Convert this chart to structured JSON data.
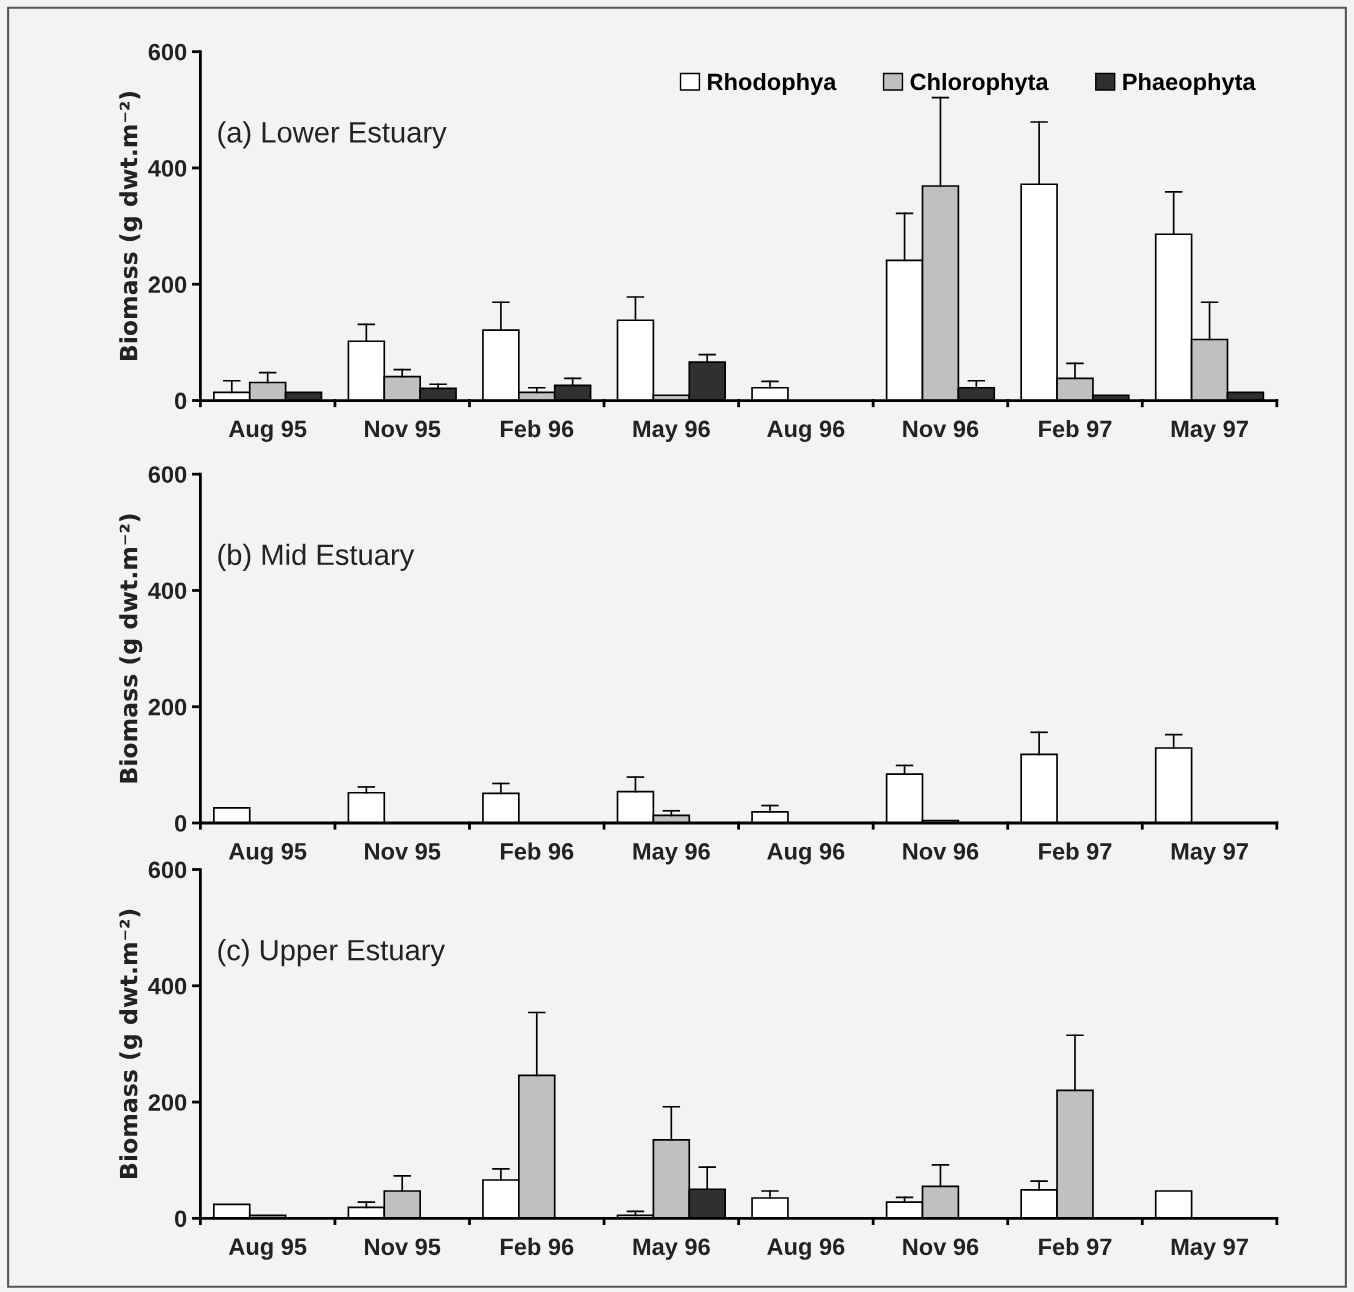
{
  "chart_data": [
    {
      "type": "bar",
      "ylabel": "Biomass (g dwt.m⁻²)",
      "annotations": [
        "(a) Lower Estuary"
      ],
      "categories": [
        "Aug 95",
        "Nov 95",
        "Feb 96",
        "May 96",
        "Aug 96",
        "Nov 96",
        "Feb 97",
        "May 97"
      ],
      "ylim": [
        0,
        600
      ],
      "yticks": [
        0,
        200,
        400,
        600
      ],
      "grid": false,
      "legend": "top right",
      "series": [
        {
          "name": "Rhodophya",
          "color": "#ffffff",
          "values": [
            14,
            102,
            121,
            138,
            22,
            241,
            372,
            286
          ],
          "errors": [
            [
              14,
              34
            ],
            [
              102,
              131
            ],
            [
              121,
              169
            ],
            [
              138,
              178
            ],
            [
              22,
              33
            ],
            [
              241,
              322
            ],
            [
              372,
              479
            ],
            [
              286,
              359
            ]
          ]
        },
        {
          "name": "Chlorophyta",
          "color": "#c0c0c0",
          "values": [
            31,
            41,
            14,
            9,
            null,
            369,
            38,
            105
          ],
          "errors": [
            [
              31,
              48
            ],
            [
              41,
              53
            ],
            [
              14,
              22
            ],
            null,
            null,
            [
              369,
              521
            ],
            [
              38,
              64
            ],
            [
              105,
              169
            ]
          ]
        },
        {
          "name": "Phaeophyta",
          "color": "#303030",
          "values": [
            14,
            21,
            26,
            66,
            null,
            22,
            9,
            14
          ],
          "errors": [
            null,
            [
              21,
              28
            ],
            [
              26,
              38
            ],
            [
              66,
              79
            ],
            null,
            [
              22,
              34
            ],
            null,
            null
          ]
        }
      ]
    },
    {
      "type": "bar",
      "ylabel": "Biomass (g dwt.m⁻²)",
      "annotations": [
        "(b) Mid Estuary"
      ],
      "categories": [
        "Aug 95",
        "Nov 95",
        "Feb 96",
        "May 96",
        "Aug 96",
        "Nov 96",
        "Feb 97",
        "May 97"
      ],
      "ylim": [
        0,
        600
      ],
      "yticks": [
        0,
        200,
        400,
        600
      ],
      "grid": false,
      "series": [
        {
          "color": "#ffffff",
          "values": [
            26,
            52,
            51,
            54,
            19,
            84,
            118,
            129
          ],
          "errors": [
            null,
            [
              52,
              62
            ],
            [
              51,
              68
            ],
            [
              54,
              79
            ],
            [
              19,
              30
            ],
            [
              84,
              99
            ],
            [
              118,
              156
            ],
            [
              129,
              152
            ]
          ]
        },
        {
          "color": "#c0c0c0",
          "values": [
            null,
            null,
            null,
            13,
            null,
            4,
            null,
            null
          ],
          "errors": [
            null,
            null,
            null,
            [
              13,
              21
            ],
            null,
            null,
            null,
            null
          ]
        },
        {
          "color": "#303030",
          "values": [
            null,
            null,
            null,
            null,
            null,
            null,
            null,
            null
          ]
        }
      ]
    },
    {
      "type": "bar",
      "ylabel": "Biomass (g dwt.m⁻²)",
      "annotations": [
        "(c) Upper Estuary"
      ],
      "categories": [
        "Aug 95",
        "Nov 95",
        "Feb 96",
        "May 96",
        "Aug 96",
        "Nov 96",
        "Feb 97",
        "May 97"
      ],
      "ylim": [
        0,
        600
      ],
      "yticks": [
        0,
        200,
        400,
        600
      ],
      "grid": false,
      "series": [
        {
          "color": "#ffffff",
          "values": [
            24,
            19,
            66,
            5,
            35,
            28,
            49,
            47
          ],
          "errors": [
            null,
            [
              19,
              28
            ],
            [
              66,
              85
            ],
            [
              5,
              12
            ],
            [
              35,
              47
            ],
            [
              28,
              36
            ],
            [
              49,
              64
            ],
            null
          ]
        },
        {
          "color": "#c0c0c0",
          "values": [
            5,
            47,
            246,
            135,
            null,
            55,
            220,
            null
          ],
          "errors": [
            null,
            [
              47,
              73
            ],
            [
              246,
              354
            ],
            [
              135,
              192
            ],
            null,
            [
              55,
              92
            ],
            [
              220,
              315
            ],
            null
          ]
        },
        {
          "color": "#303030",
          "values": [
            null,
            null,
            null,
            50,
            null,
            null,
            null,
            null
          ],
          "errors": [
            null,
            null,
            null,
            [
              50,
              88
            ],
            null,
            null,
            null,
            null
          ]
        }
      ]
    }
  ]
}
